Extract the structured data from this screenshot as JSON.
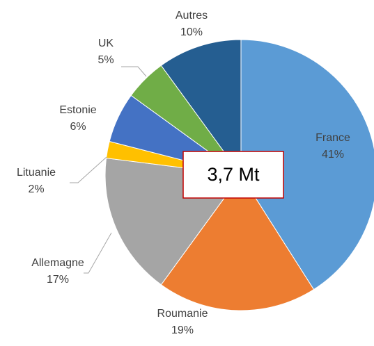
{
  "chart_data": {
    "type": "pie",
    "categories": [
      "France",
      "Roumanie",
      "Allemagne",
      "Lituanie",
      "Estonie",
      "UK",
      "Autres"
    ],
    "values": [
      41,
      19,
      17,
      2,
      6,
      5,
      10
    ],
    "value_labels": [
      "41%",
      "19%",
      "17%",
      "2%",
      "6%",
      "5%",
      "10%"
    ],
    "colors": [
      "#5b9bd5",
      "#ed7d31",
      "#a5a5a5",
      "#ffc000",
      "#4472c4",
      "#70ad47",
      "#255e91"
    ],
    "annotation": "3,7 Mt"
  }
}
